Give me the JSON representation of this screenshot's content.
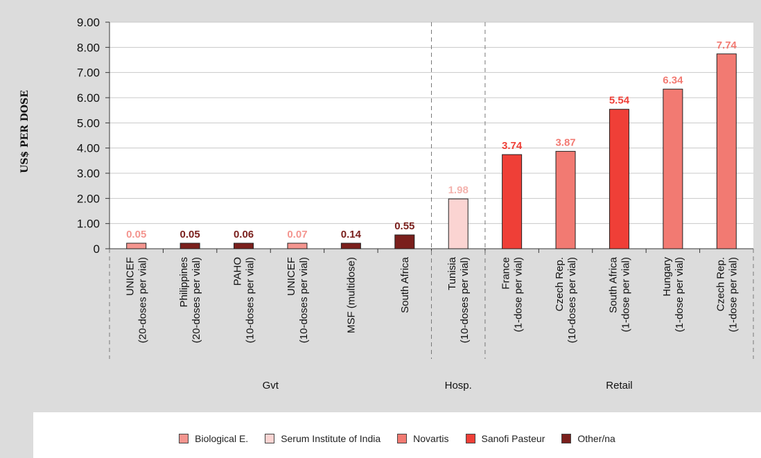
{
  "chart_data": {
    "type": "bar",
    "ylabel": "US$ PER DOSE",
    "ylim": [
      0,
      9
    ],
    "yticks": [
      "9.00",
      "8.00",
      "7.00",
      "6.00",
      "5.00",
      "4.00",
      "3.00",
      "2.00",
      "1.00",
      "0"
    ],
    "grid": true,
    "categories": [
      [
        "UNICEF",
        "(20-doses per vial)"
      ],
      [
        "Philippines",
        "(20-doses per vial)"
      ],
      [
        "PAHO",
        "(10-doses per vial)"
      ],
      [
        "UNICEF",
        "(10-doses per vial)"
      ],
      [
        "MSF (multidose)"
      ],
      [
        "South Africa"
      ],
      [
        "Tunisia",
        "(10-doses per vial)"
      ],
      [
        "France",
        "(1-dose per vial)"
      ],
      [
        "Czech Rep.",
        "(10-doses per vial)"
      ],
      [
        "South Africa",
        "(1-dose per vial)"
      ],
      [
        "Hungary",
        "(1-dose per vial)"
      ],
      [
        "Czech Rep.",
        "(1-dose per vial)"
      ]
    ],
    "values": [
      0.05,
      0.05,
      0.06,
      0.07,
      0.14,
      0.55,
      1.98,
      3.74,
      3.87,
      5.54,
      6.34,
      7.74
    ],
    "value_labels": [
      "0.05",
      "0.05",
      "0.06",
      "0.07",
      "0.14",
      "0.55",
      "1.98",
      "3.74",
      "3.87",
      "5.54",
      "6.34",
      "7.74"
    ],
    "manufacturer": [
      "Biological E.",
      "Other/na",
      "Other/na",
      "Biological E.",
      "Other/na",
      "Other/na",
      "Serum Institute of India",
      "Sanofi Pasteur",
      "Novartis",
      "Sanofi Pasteur",
      "Novartis",
      "Novartis"
    ],
    "groups": [
      {
        "label": "Gvt",
        "start": 0,
        "end": 5
      },
      {
        "label": "Hosp.",
        "start": 6,
        "end": 6
      },
      {
        "label": "Retail",
        "start": 7,
        "end": 11
      }
    ],
    "legend": [
      {
        "name": "Biological E.",
        "color": "#f4958f"
      },
      {
        "name": "Serum Institute of India",
        "color": "#fbd4d2"
      },
      {
        "name": "Novartis",
        "color": "#f27a72"
      },
      {
        "name": "Sanofi Pasteur",
        "color": "#ef3f37"
      },
      {
        "name": "Other/na",
        "color": "#7a1f1c"
      }
    ],
    "legend_position": "bottom"
  }
}
